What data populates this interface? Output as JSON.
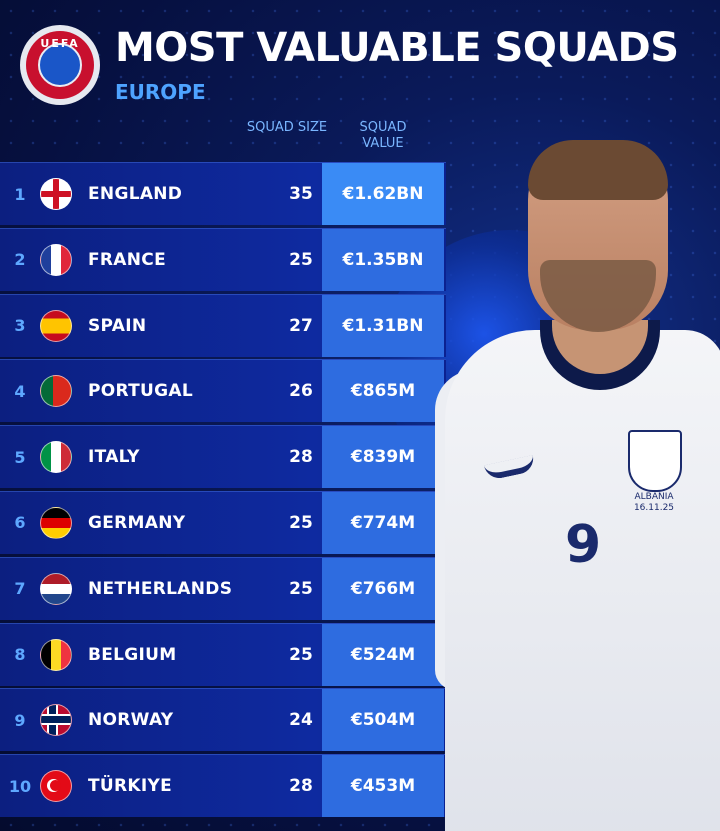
{
  "header": {
    "logo_text": "UEFA",
    "title": "MOST VALUABLE SQUADS",
    "subtitle": "EUROPE"
  },
  "columns": {
    "size_label": "SQUAD SIZE",
    "value_label": "SQUAD VALUE"
  },
  "rows": [
    {
      "rank": "1",
      "flag": "england-flag-icon",
      "country": "ENGLAND",
      "size": "35",
      "value": "€1.62BN"
    },
    {
      "rank": "2",
      "flag": "france-flag-icon",
      "country": "FRANCE",
      "size": "25",
      "value": "€1.35BN"
    },
    {
      "rank": "3",
      "flag": "spain-flag-icon",
      "country": "SPAIN",
      "size": "27",
      "value": "€1.31BN"
    },
    {
      "rank": "4",
      "flag": "portugal-flag-icon",
      "country": "PORTUGAL",
      "size": "26",
      "value": "€865M"
    },
    {
      "rank": "5",
      "flag": "italy-flag-icon",
      "country": "ITALY",
      "size": "28",
      "value": "€839M"
    },
    {
      "rank": "6",
      "flag": "germany-flag-icon",
      "country": "GERMANY",
      "size": "25",
      "value": "€774M"
    },
    {
      "rank": "7",
      "flag": "netherlands-flag-icon",
      "country": "NETHERLANDS",
      "size": "25",
      "value": "€766M"
    },
    {
      "rank": "8",
      "flag": "belgium-flag-icon",
      "country": "BELGIUM",
      "size": "25",
      "value": "€524M"
    },
    {
      "rank": "9",
      "flag": "norway-flag-icon",
      "country": "NORWAY",
      "size": "24",
      "value": "€504M"
    },
    {
      "rank": "10",
      "flag": "turkiye-flag-icon",
      "country": "TÜRKIYE",
      "size": "28",
      "value": "€453M"
    }
  ],
  "player": {
    "shirt_number": "9",
    "patch_text": "ALBANIA 16.11.25"
  },
  "colors": {
    "background": "#06113a",
    "accent": "#4ea3ff",
    "value_cell": "#2e6ce0",
    "row": "#0e2aa0"
  }
}
